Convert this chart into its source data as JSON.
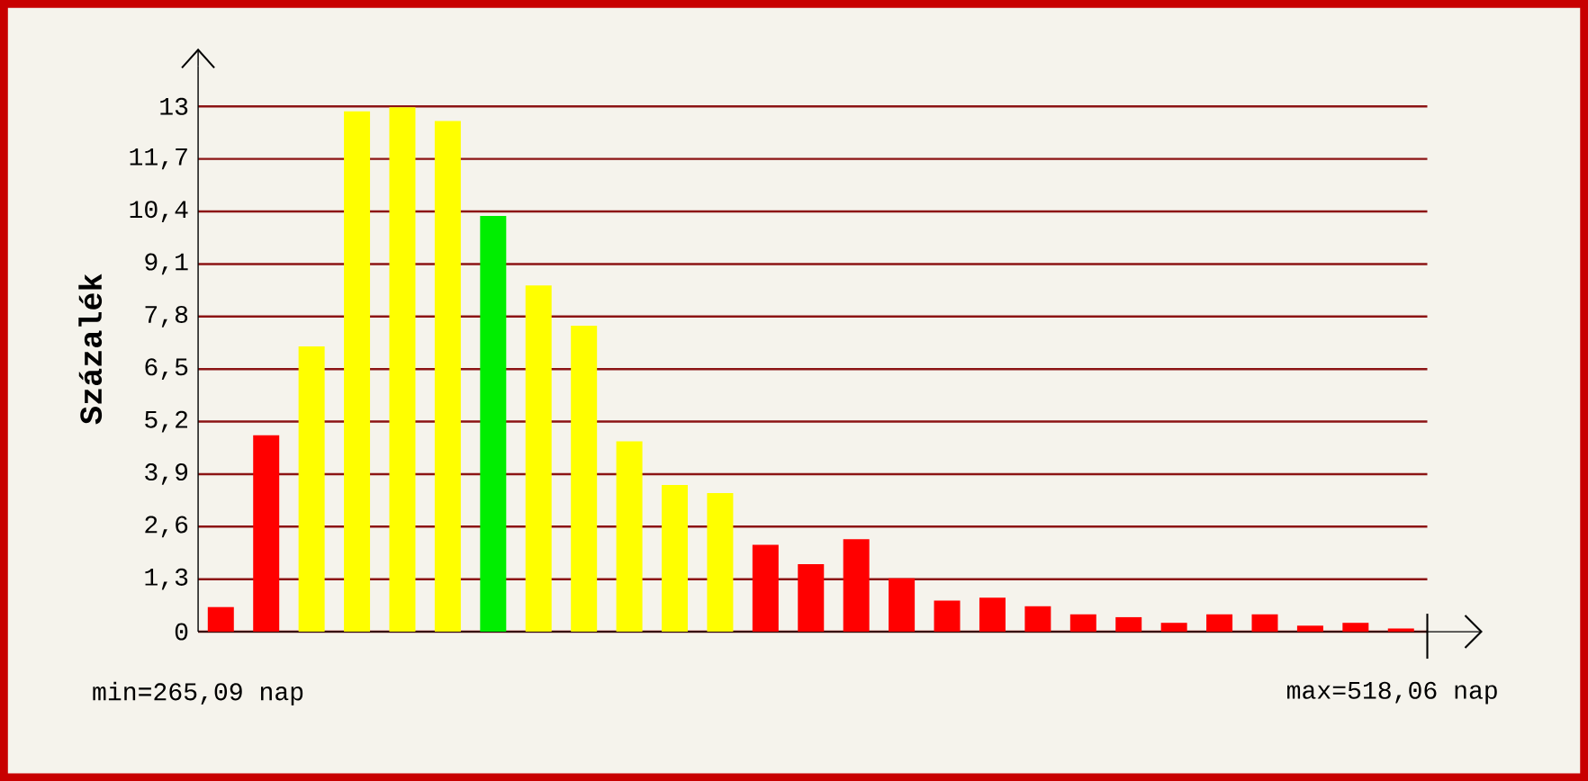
{
  "chart_data": {
    "type": "bar",
    "ylabel": "Százalék",
    "categories": [
      null,
      null,
      null,
      null,
      null,
      null,
      null,
      null,
      null,
      null,
      null,
      null,
      null,
      null,
      null,
      null,
      null,
      null,
      null,
      null,
      null,
      null,
      null,
      null,
      null,
      null,
      null
    ],
    "values": [
      0.61,
      4.86,
      7.06,
      12.88,
      12.98,
      12.64,
      10.29,
      8.57,
      7.57,
      4.71,
      3.63,
      3.43,
      2.15,
      1.67,
      2.29,
      1.32,
      0.77,
      0.84,
      0.63,
      0.43,
      0.36,
      0.22,
      0.43,
      0.43,
      0.15,
      0.22,
      0.08
    ],
    "colors": [
      "#ff0000",
      "#ff0000",
      "#ffff00",
      "#ffff00",
      "#ffff00",
      "#ffff00",
      "#00ee00",
      "#ffff00",
      "#ffff00",
      "#ffff00",
      "#ffff00",
      "#ffff00",
      "#ff0000",
      "#ff0000",
      "#ff0000",
      "#ff0000",
      "#ff0000",
      "#ff0000",
      "#ff0000",
      "#ff0000",
      "#ff0000",
      "#ff0000",
      "#ff0000",
      "#ff0000",
      "#ff0000",
      "#ff0000",
      "#ff0000"
    ],
    "ylim": [
      0,
      14
    ],
    "yticks": [
      0,
      {
        "value": 1.3,
        "label": "1,3"
      },
      {
        "value": 2.6,
        "label": "2,6"
      },
      {
        "value": 3.9,
        "label": "3,9"
      },
      {
        "value": 5.2,
        "label": "5,2"
      },
      {
        "value": 6.5,
        "label": "6,5"
      },
      {
        "value": 7.8,
        "label": "7,8"
      },
      {
        "value": 9.1,
        "label": "9,1"
      },
      {
        "value": 10.4,
        "label": "10,4"
      },
      {
        "value": 11.7,
        "label": "11,7"
      },
      13
    ],
    "grid": "y",
    "annotations": [
      "min=265,09 nap",
      "max=518,06 nap"
    ]
  }
}
